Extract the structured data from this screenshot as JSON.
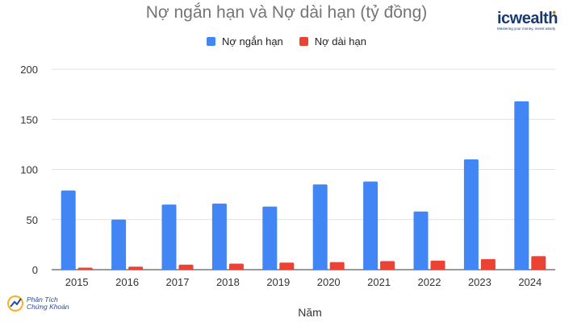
{
  "header": {
    "brand_name": "icwealth",
    "brand_tagline": "Mastering your money, invest wisely"
  },
  "footer": {
    "logo_line1": "Phân Tích",
    "logo_line2": "Chứng Khoán"
  },
  "colors": {
    "short_term": "#4285f4",
    "long_term": "#ea4335",
    "grid": "#e0e0e0",
    "axis": "#333333"
  },
  "chart_data": {
    "type": "bar",
    "title": "Nợ ngắn hạn và Nợ dài hạn (tỷ đồng)",
    "xlabel": "Năm",
    "ylabel": "",
    "categories": [
      "2015",
      "2016",
      "2017",
      "2018",
      "2019",
      "2020",
      "2021",
      "2022",
      "2023",
      "2024"
    ],
    "series": [
      {
        "name": "Nợ ngắn hạn",
        "values": [
          79,
          50,
          65,
          66,
          63,
          85,
          88,
          58,
          110,
          168
        ]
      },
      {
        "name": "Nợ dài hạn",
        "values": [
          2,
          3,
          5,
          6,
          7,
          7.5,
          8.5,
          9,
          10.5,
          13.5
        ]
      }
    ],
    "ylim": [
      0,
      200
    ],
    "yticks": [
      0,
      50,
      100,
      150,
      200
    ],
    "grid": true,
    "legend": "top-center"
  }
}
